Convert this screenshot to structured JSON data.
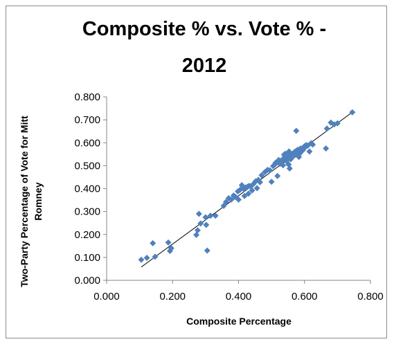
{
  "chart_data": {
    "type": "scatter",
    "title_lines": [
      "Composite % vs. Vote % -",
      "2012"
    ],
    "xlabel": "Composite Percentage",
    "ylabel_lines": [
      "Two-Party Percentage of Vote for Mitt",
      "Romney"
    ],
    "xlim": [
      0,
      0.8
    ],
    "ylim": [
      0,
      0.8
    ],
    "xticks": [
      "0.000",
      "0.200",
      "0.400",
      "0.600",
      "0.800"
    ],
    "yticks": [
      "0.000",
      "0.100",
      "0.200",
      "0.300",
      "0.400",
      "0.500",
      "0.600",
      "0.700",
      "0.800"
    ],
    "grid": false,
    "legend": false,
    "marker_color": "#4f81bd",
    "trendline": {
      "x": [
        0.105,
        0.745
      ],
      "y": [
        0.058,
        0.733
      ],
      "color": "#000000"
    },
    "series": [
      {
        "x": [
          0.105,
          0.122,
          0.14,
          0.147,
          0.187,
          0.192,
          0.196,
          0.272,
          0.276,
          0.28,
          0.285,
          0.3,
          0.305,
          0.315,
          0.302,
          0.33,
          0.355,
          0.362,
          0.37,
          0.378,
          0.385,
          0.39,
          0.398,
          0.405,
          0.41,
          0.416,
          0.422,
          0.43,
          0.437,
          0.441,
          0.445,
          0.452,
          0.456,
          0.46,
          0.465,
          0.4,
          0.418,
          0.427,
          0.432,
          0.47,
          0.48,
          0.488,
          0.495,
          0.5,
          0.505,
          0.51,
          0.515,
          0.52,
          0.525,
          0.53,
          0.535,
          0.54,
          0.545,
          0.548,
          0.55,
          0.552,
          0.555,
          0.558,
          0.56,
          0.562,
          0.565,
          0.568,
          0.57,
          0.572,
          0.575,
          0.578,
          0.58,
          0.583,
          0.585,
          0.588,
          0.59,
          0.593,
          0.595,
          0.598,
          0.6,
          0.603,
          0.605,
          0.61,
          0.615,
          0.62,
          0.625,
          0.548,
          0.528,
          0.518,
          0.538,
          0.553,
          0.575,
          0.665,
          0.668,
          0.68,
          0.69,
          0.7,
          0.745,
          0.512,
          0.522,
          0.535,
          0.542
        ],
        "y": [
          0.09,
          0.098,
          0.162,
          0.103,
          0.165,
          0.128,
          0.14,
          0.198,
          0.218,
          0.29,
          0.248,
          0.275,
          0.13,
          0.282,
          0.242,
          0.282,
          0.325,
          0.342,
          0.358,
          0.352,
          0.37,
          0.365,
          0.388,
          0.395,
          0.415,
          0.398,
          0.405,
          0.378,
          0.41,
          0.392,
          0.42,
          0.432,
          0.402,
          0.438,
          0.428,
          0.352,
          0.368,
          0.408,
          0.412,
          0.458,
          0.472,
          0.482,
          0.48,
          0.43,
          0.498,
          0.505,
          0.512,
          0.522,
          0.508,
          0.518,
          0.502,
          0.53,
          0.52,
          0.54,
          0.545,
          0.505,
          0.488,
          0.528,
          0.548,
          0.535,
          0.542,
          0.555,
          0.56,
          0.548,
          0.652,
          0.562,
          0.57,
          0.538,
          0.552,
          0.575,
          0.572,
          0.565,
          0.568,
          0.58,
          0.585,
          0.582,
          0.59,
          0.588,
          0.562,
          0.598,
          0.592,
          0.54,
          0.51,
          0.455,
          0.548,
          0.562,
          0.565,
          0.575,
          0.662,
          0.688,
          0.68,
          0.685,
          0.733,
          0.512,
          0.525,
          0.53,
          0.552
        ]
      }
    ]
  }
}
